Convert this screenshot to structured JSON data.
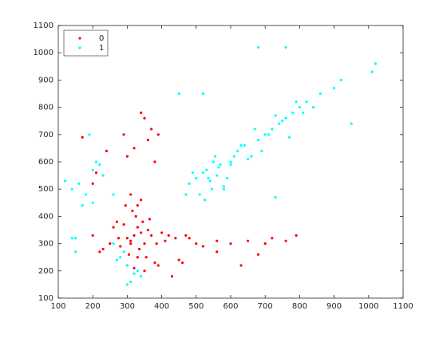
{
  "chart_data": {
    "type": "scatter",
    "xlim": [
      100,
      1100
    ],
    "ylim": [
      100,
      1100
    ],
    "xticks": [
      100,
      200,
      300,
      400,
      500,
      600,
      700,
      800,
      900,
      1000,
      1100
    ],
    "yticks": [
      100,
      200,
      300,
      400,
      500,
      600,
      700,
      800,
      900,
      1000,
      1100
    ],
    "legend": "upper left",
    "series": [
      {
        "name": "0",
        "color": "#ff0000",
        "x": [
          320,
          340,
          300,
          360,
          310,
          330,
          350,
          290,
          370,
          280,
          325,
          345,
          315,
          335,
          305,
          355,
          365,
          295,
          385,
          275,
          400,
          410,
          260,
          250,
          420,
          440,
          230,
          380,
          390,
          270,
          330,
          340,
          310,
          320,
          350,
          300,
          360,
          290,
          370,
          240,
          450,
          470,
          220,
          200,
          210,
          480,
          500,
          560,
          600,
          650,
          700,
          720,
          760,
          790,
          680,
          630,
          340,
          350,
          320,
          380,
          390,
          170,
          200,
          310,
          330,
          300,
          560,
          520,
          460,
          430
        ],
        "values": [
          330,
          340,
          320,
          350,
          310,
          360,
          300,
          370,
          330,
          290,
          400,
          380,
          420,
          280,
          260,
          250,
          390,
          440,
          300,
          320,
          340,
          310,
          360,
          300,
          330,
          320,
          280,
          230,
          220,
          380,
          440,
          460,
          480,
          210,
          200,
          620,
          680,
          700,
          720,
          640,
          240,
          330,
          270,
          330,
          560,
          320,
          300,
          310,
          300,
          310,
          300,
          320,
          310,
          330,
          260,
          220,
          780,
          760,
          650,
          600,
          700,
          690,
          520,
          300,
          250,
          220,
          270,
          290,
          230,
          180
        ]
      },
      {
        "name": "1",
        "color": "#00ffff",
        "x": [
          480,
          500,
          520,
          540,
          560,
          580,
          510,
          530,
          550,
          570,
          490,
          545,
          555,
          565,
          525,
          535,
          600,
          610,
          470,
          590,
          620,
          640,
          660,
          680,
          700,
          720,
          740,
          760,
          780,
          800,
          820,
          840,
          860,
          900,
          920,
          1020,
          1010,
          950,
          650,
          690,
          710,
          730,
          630,
          670,
          750,
          770,
          790,
          810,
          600,
          580,
          280,
          300,
          320,
          290,
          310,
          330,
          260,
          270,
          340,
          300,
          120,
          140,
          160,
          180,
          200,
          220,
          150,
          170,
          190,
          210,
          140,
          150,
          200,
          230,
          260,
          680,
          760,
          450,
          520,
          730
        ],
        "values": [
          520,
          540,
          560,
          530,
          550,
          510,
          480,
          570,
          600,
          590,
          560,
          500,
          620,
          580,
          460,
          540,
          590,
          620,
          480,
          540,
          640,
          660,
          620,
          680,
          700,
          720,
          740,
          760,
          780,
          800,
          820,
          800,
          850,
          870,
          900,
          960,
          930,
          740,
          610,
          640,
          700,
          770,
          660,
          720,
          750,
          690,
          820,
          780,
          600,
          500,
          250,
          220,
          190,
          270,
          160,
          200,
          300,
          240,
          180,
          150,
          530,
          500,
          520,
          480,
          450,
          590,
          320,
          440,
          700,
          600,
          320,
          270,
          570,
          550,
          480,
          1020,
          1020,
          850,
          850,
          470
        ]
      }
    ]
  }
}
